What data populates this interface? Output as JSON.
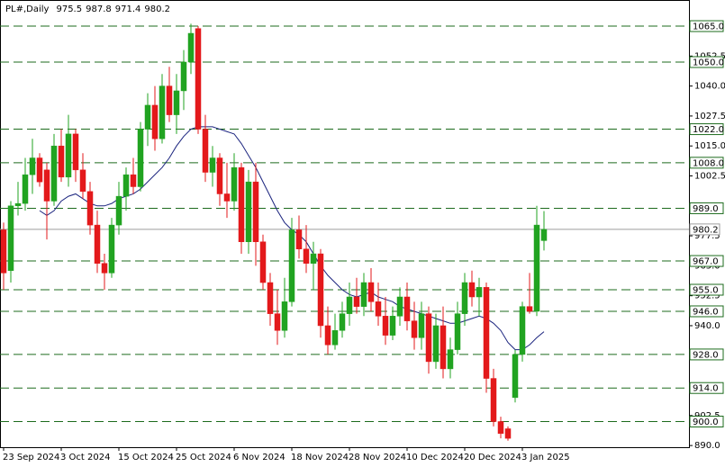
{
  "chart_data": {
    "type": "candlestick",
    "title": "PL#,Daily",
    "categories": [
      "23 Sep 2024",
      null,
      null,
      null,
      null,
      null,
      null,
      null,
      "3 Oct 2024",
      null,
      null,
      null,
      null,
      null,
      null,
      null,
      "15 Oct 2024",
      null,
      null,
      null,
      null,
      null,
      null,
      null,
      "25 Oct 2024",
      null,
      null,
      null,
      null,
      null,
      null,
      null,
      "6 Nov 2024",
      null,
      null,
      null,
      null,
      null,
      null,
      null,
      "18 Nov 2024",
      null,
      null,
      null,
      null,
      null,
      null,
      null,
      "28 Nov 2024",
      null,
      null,
      null,
      null,
      null,
      null,
      null,
      "10 Dec 2024",
      null,
      null,
      null,
      null,
      null,
      null,
      null,
      "20 Dec 2024",
      null,
      null,
      null,
      null,
      null,
      null,
      null,
      "3 Jan 2025",
      null,
      null,
      null
    ],
    "open": [
      980,
      963,
      990,
      991,
      1003,
      1010,
      1005,
      992,
      1015,
      1002,
      1020,
      1005,
      996,
      982,
      966,
      962,
      982,
      994,
      1003,
      998,
      1022,
      1032,
      1018,
      1040,
      1028,
      1038,
      1050,
      1064,
      1022,
      1004,
      1010,
      995,
      992,
      1006,
      975,
      1000,
      975,
      958,
      945,
      938,
      950,
      980,
      972,
      966,
      970,
      940,
      932,
      938,
      945,
      952,
      948,
      958,
      950,
      944,
      936,
      944,
      952,
      942,
      935,
      945,
      925,
      940,
      922,
      930,
      945,
      958,
      952,
      956,
      918,
      900,
      897,
      910,
      928,
      948,
      946,
      975.5
    ],
    "high": [
      983,
      992,
      1000,
      1010,
      1018,
      1012,
      1008,
      1020,
      1022,
      1028,
      1022,
      1012,
      1000,
      988,
      970,
      985,
      1000,
      1006,
      1010,
      1025,
      1037,
      1040,
      1045,
      1048,
      1045,
      1055,
      1066,
      1065,
      1028,
      1015,
      1012,
      1008,
      1012,
      1008,
      1005,
      1008,
      978,
      962,
      955,
      960,
      985,
      986,
      982,
      975,
      972,
      948,
      945,
      950,
      958,
      960,
      962,
      964,
      958,
      952,
      948,
      956,
      958,
      950,
      950,
      948,
      945,
      948,
      935,
      950,
      962,
      963,
      960,
      958,
      922,
      902,
      898,
      930,
      950,
      962,
      990,
      987.8
    ],
    "low": [
      955,
      958,
      986,
      988,
      995,
      998,
      976,
      990,
      1000,
      998,
      1000,
      993,
      978,
      962,
      955,
      960,
      978,
      988,
      995,
      996,
      1015,
      1013,
      1016,
      1025,
      1020,
      1030,
      1045,
      1020,
      1000,
      998,
      990,
      985,
      988,
      970,
      970,
      965,
      955,
      940,
      932,
      935,
      948,
      968,
      962,
      955,
      935,
      928,
      930,
      935,
      940,
      945,
      944,
      946,
      940,
      932,
      934,
      940,
      938,
      930,
      930,
      920,
      922,
      918,
      918,
      928,
      940,
      948,
      944,
      912,
      898,
      893,
      892,
      908,
      925,
      945,
      944,
      971.4
    ],
    "close": [
      962,
      990,
      991,
      1003,
      1010,
      1000,
      992,
      1015,
      1002,
      1020,
      1005,
      996,
      982,
      966,
      962,
      982,
      994,
      1003,
      998,
      1022,
      1032,
      1018,
      1040,
      1028,
      1038,
      1050,
      1062,
      1022,
      1004,
      1010,
      995,
      992,
      1006,
      975,
      1000,
      975,
      958,
      945,
      938,
      950,
      980,
      972,
      966,
      970,
      940,
      932,
      938,
      945,
      952,
      948,
      958,
      950,
      944,
      936,
      944,
      952,
      942,
      935,
      945,
      925,
      940,
      922,
      930,
      945,
      958,
      952,
      956,
      918,
      900,
      895,
      893,
      928,
      948,
      946,
      982,
      980.2
    ],
    "up_color": "#21a321",
    "down_color": "#e3191b",
    "ma": {
      "color": "#1a237e",
      "values": [
        null,
        null,
        null,
        null,
        null,
        988,
        986,
        988,
        992,
        994,
        995,
        993,
        991,
        990,
        990,
        991,
        993,
        994,
        995,
        997,
        1000,
        1003,
        1006,
        1010,
        1015,
        1019,
        1022,
        1023,
        1023,
        1023,
        1022,
        1021,
        1020,
        1016,
        1011,
        1006,
        1000,
        994,
        988,
        983,
        980,
        978,
        975,
        970,
        965,
        961,
        958,
        955,
        953,
        952,
        953,
        954,
        952,
        951,
        950,
        948,
        947,
        946,
        945,
        944,
        943,
        942,
        941,
        941,
        942,
        943,
        944,
        943,
        941,
        938,
        933,
        930,
        930,
        932,
        935,
        937.5
      ]
    },
    "ylim": [
      889.3,
      1075.9
    ],
    "yticks": [
      {
        "value": 1052.5,
        "label": "1052.5"
      },
      {
        "value": 1040,
        "label": "1040.0"
      },
      {
        "value": 1027.5,
        "label": "1027.5"
      },
      {
        "value": 1015,
        "label": "1015.0"
      },
      {
        "value": 1002.5,
        "label": "1002.5"
      },
      {
        "value": 977.5,
        "label": "977.5"
      },
      {
        "value": 965,
        "label": "965.0"
      },
      {
        "value": 952.5,
        "label": "952.5"
      },
      {
        "value": 940,
        "label": "940.0"
      },
      {
        "value": 902.5,
        "label": "902.5"
      },
      {
        "value": 890,
        "label": "890.0"
      }
    ],
    "levels": [
      {
        "value": 1065,
        "label": "1065.0"
      },
      {
        "value": 1050,
        "label": "1050.0"
      },
      {
        "value": 1022,
        "label": "1022.0"
      },
      {
        "value": 1008,
        "label": "1008.0"
      },
      {
        "value": 989,
        "label": "989.0"
      },
      {
        "value": 967,
        "label": "967.0"
      },
      {
        "value": 955,
        "label": "955.0"
      },
      {
        "value": 946,
        "label": "946.0"
      },
      {
        "value": 928,
        "label": "928.0"
      },
      {
        "value": 914,
        "label": "914.0"
      },
      {
        "value": 900,
        "label": "900.0"
      }
    ],
    "level_color": "#1d6b1d"
  }
}
